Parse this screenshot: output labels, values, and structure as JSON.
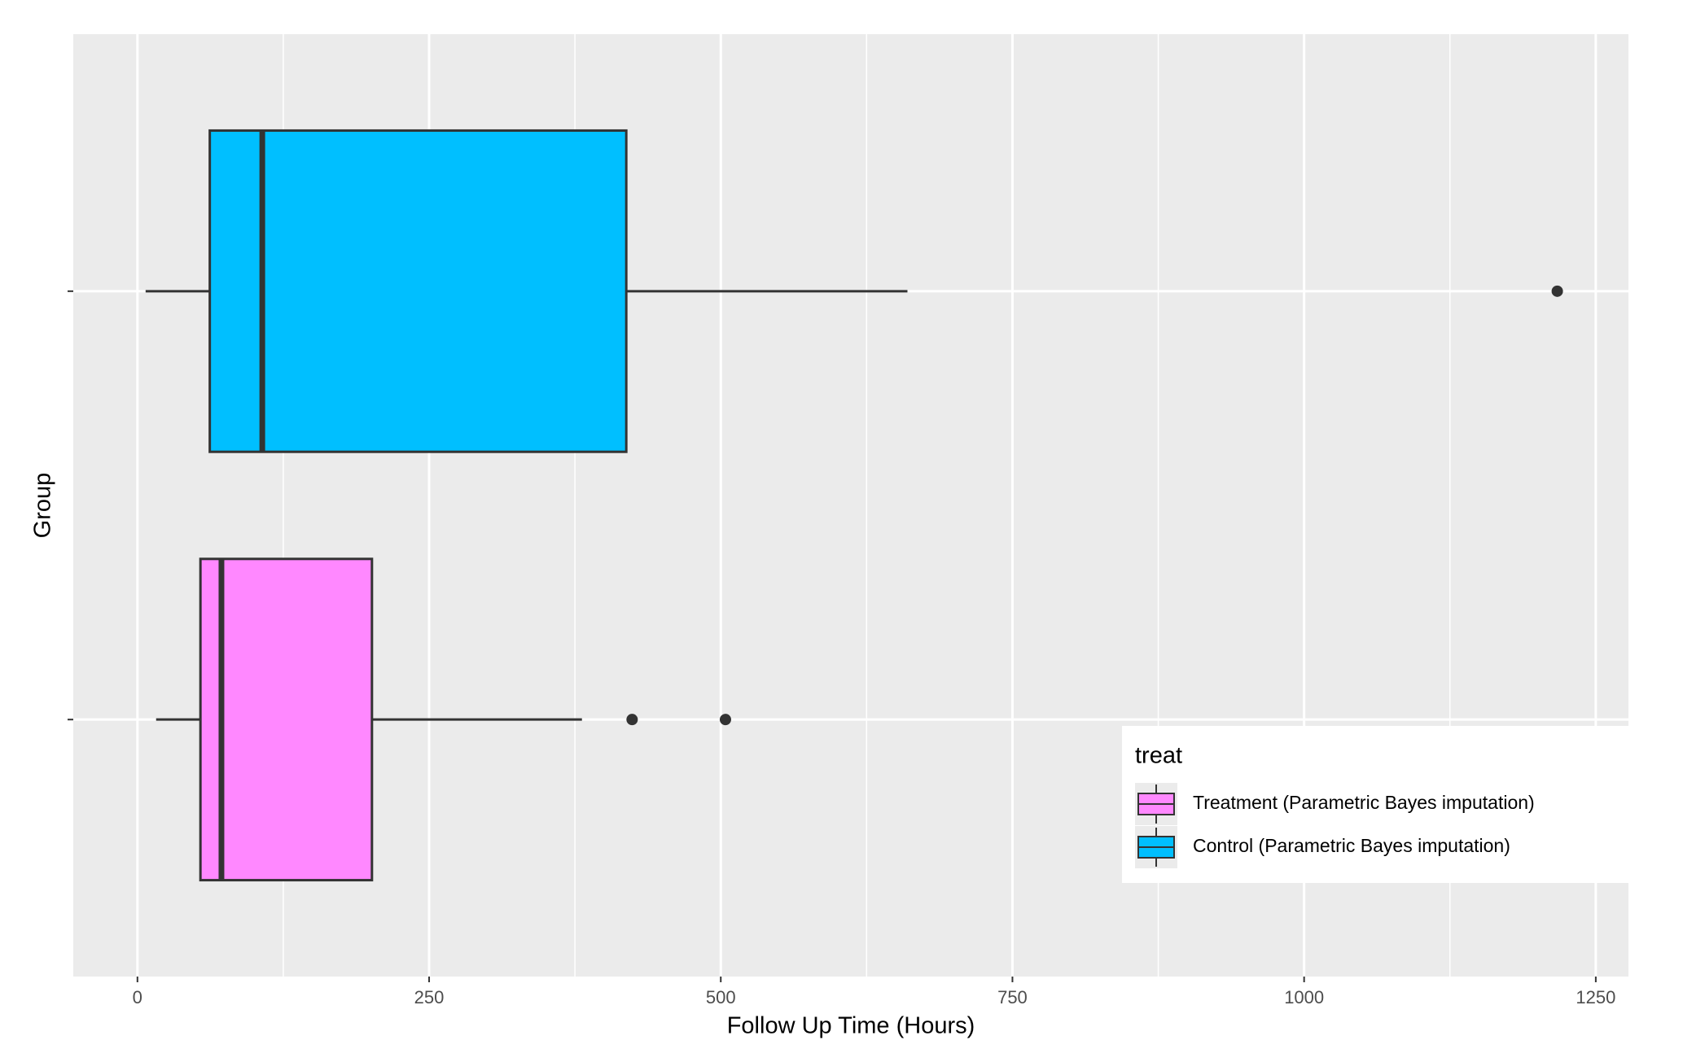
{
  "chart_data": {
    "type": "boxplot",
    "orientation": "horizontal",
    "x_label": "Follow Up Time (Hours)",
    "y_label": "Group",
    "categories": [
      null,
      null
    ],
    "xlim": [
      -55,
      1278
    ],
    "xticks": [
      0,
      250,
      500,
      750,
      1000,
      1250
    ],
    "grid": true,
    "legend_title": "treat",
    "legend_position": "bottom-right",
    "series": [
      {
        "name": "Treatment (Parametric Bayes imputation)",
        "color": "#ff88ff",
        "min": 16,
        "q1": 54,
        "median": 72,
        "q3": 201,
        "max": 381,
        "outliers": [
          424,
          504
        ]
      },
      {
        "name": "Control (Parametric Bayes imputation)",
        "color": "#00bfff",
        "min": 7,
        "q1": 62,
        "median": 107,
        "q3": 419,
        "max": 660,
        "outliers": [
          1217
        ]
      }
    ]
  }
}
